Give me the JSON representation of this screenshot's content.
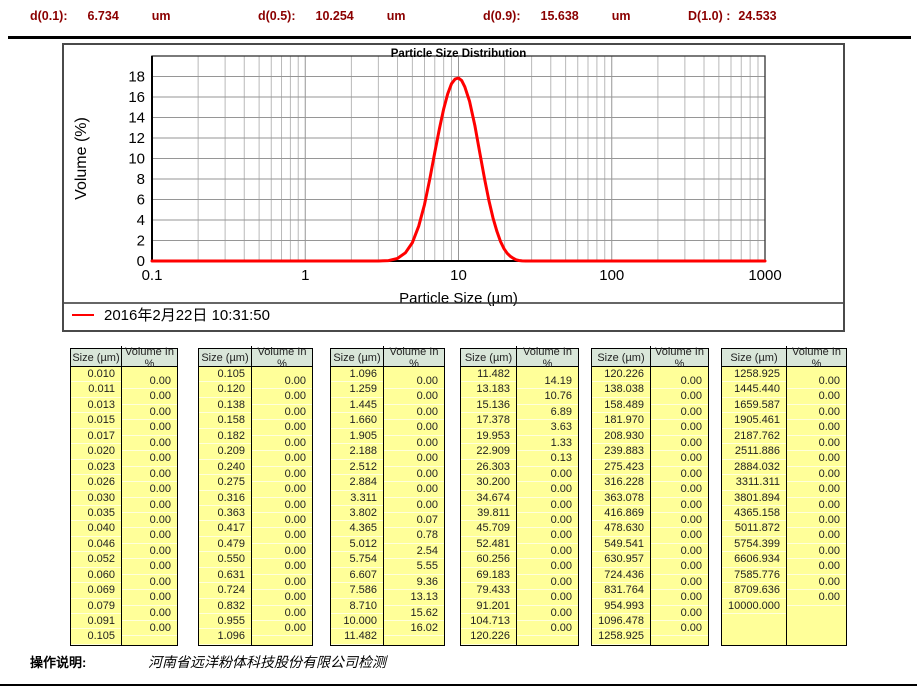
{
  "header": {
    "items": [
      {
        "label": "d(0.1):",
        "value": "6.734",
        "unit": "um"
      },
      {
        "label": "d(0.5):",
        "value": "10.254",
        "unit": "um"
      },
      {
        "label": "d(0.9):",
        "value": "15.638",
        "unit": "um"
      },
      {
        "label": "D(1.0) :",
        "value": "24.533",
        "unit": ""
      }
    ]
  },
  "chart_data": {
    "type": "line",
    "title": "Particle Size Distribution",
    "xlabel": "Particle Size (µm)",
    "ylabel": "Volume (%)",
    "xscale": "log",
    "xlim": [
      0.1,
      1000
    ],
    "ylim": [
      0,
      20
    ],
    "yticks": [
      0,
      2,
      4,
      6,
      8,
      10,
      12,
      14,
      16,
      18
    ],
    "xticks": [
      0.1,
      1,
      10,
      100,
      1000
    ],
    "xtick_labels": [
      "0.1",
      "1",
      "10",
      "100",
      "1000"
    ],
    "grid": true,
    "legend": {
      "label": "2016年2月22日  10:31:50",
      "color": "#ff0000",
      "position": "bottom"
    },
    "series": [
      {
        "name": "2016年2月22日  10:31:50",
        "color": "#ff0000",
        "points": [
          [
            0.1,
            0
          ],
          [
            1,
            0
          ],
          [
            2,
            0
          ],
          [
            3,
            0
          ],
          [
            3.5,
            0.04
          ],
          [
            4,
            0.25
          ],
          [
            4.5,
            0.8
          ],
          [
            5,
            1.8
          ],
          [
            5.5,
            3.4
          ],
          [
            6,
            5.5
          ],
          [
            6.5,
            8.0
          ],
          [
            7,
            10.6
          ],
          [
            7.5,
            12.9
          ],
          [
            8,
            14.8
          ],
          [
            8.5,
            16.3
          ],
          [
            9,
            17.3
          ],
          [
            9.5,
            17.75
          ],
          [
            10,
            17.85
          ],
          [
            10.5,
            17.6
          ],
          [
            11,
            17.0
          ],
          [
            11.8,
            15.6
          ],
          [
            12.8,
            13.2
          ],
          [
            13.8,
            10.5
          ],
          [
            14.8,
            8.0
          ],
          [
            15.8,
            5.9
          ],
          [
            16.8,
            4.2
          ],
          [
            17.8,
            2.9
          ],
          [
            18.8,
            1.9
          ],
          [
            19.8,
            1.2
          ],
          [
            20.8,
            0.75
          ],
          [
            21.8,
            0.45
          ],
          [
            22.8,
            0.25
          ],
          [
            23.8,
            0.12
          ],
          [
            24.8,
            0.05
          ],
          [
            26,
            0.01
          ],
          [
            27.5,
            0
          ],
          [
            100,
            0
          ],
          [
            1000,
            0
          ]
        ]
      }
    ]
  },
  "table_headers": [
    "Size (µm)",
    "Volume In %"
  ],
  "tables": [
    {
      "sizes": [
        "0.010",
        "0.011",
        "0.013",
        "0.015",
        "0.017",
        "0.020",
        "0.023",
        "0.026",
        "0.030",
        "0.035",
        "0.040",
        "0.046",
        "0.052",
        "0.060",
        "0.069",
        "0.079",
        "0.091",
        "0.105"
      ],
      "volumes": [
        "0.00",
        "0.00",
        "0.00",
        "0.00",
        "0.00",
        "0.00",
        "0.00",
        "0.00",
        "0.00",
        "0.00",
        "0.00",
        "0.00",
        "0.00",
        "0.00",
        "0.00",
        "0.00",
        "0.00"
      ]
    },
    {
      "sizes": [
        "0.105",
        "0.120",
        "0.138",
        "0.158",
        "0.182",
        "0.209",
        "0.240",
        "0.275",
        "0.316",
        "0.363",
        "0.417",
        "0.479",
        "0.550",
        "0.631",
        "0.724",
        "0.832",
        "0.955",
        "1.096"
      ],
      "volumes": [
        "0.00",
        "0.00",
        "0.00",
        "0.00",
        "0.00",
        "0.00",
        "0.00",
        "0.00",
        "0.00",
        "0.00",
        "0.00",
        "0.00",
        "0.00",
        "0.00",
        "0.00",
        "0.00",
        "0.00"
      ]
    },
    {
      "sizes": [
        "1.096",
        "1.259",
        "1.445",
        "1.660",
        "1.905",
        "2.188",
        "2.512",
        "2.884",
        "3.311",
        "3.802",
        "4.365",
        "5.012",
        "5.754",
        "6.607",
        "7.586",
        "8.710",
        "10.000",
        "11.482"
      ],
      "volumes": [
        "0.00",
        "0.00",
        "0.00",
        "0.00",
        "0.00",
        "0.00",
        "0.00",
        "0.00",
        "0.00",
        "0.07",
        "0.78",
        "2.54",
        "5.55",
        "9.36",
        "13.13",
        "15.62",
        "16.02"
      ]
    },
    {
      "sizes": [
        "11.482",
        "13.183",
        "15.136",
        "17.378",
        "19.953",
        "22.909",
        "26.303",
        "30.200",
        "34.674",
        "39.811",
        "45.709",
        "52.481",
        "60.256",
        "69.183",
        "79.433",
        "91.201",
        "104.713",
        "120.226"
      ],
      "volumes": [
        "14.19",
        "10.76",
        "6.89",
        "3.63",
        "1.33",
        "0.13",
        "0.00",
        "0.00",
        "0.00",
        "0.00",
        "0.00",
        "0.00",
        "0.00",
        "0.00",
        "0.00",
        "0.00",
        "0.00"
      ]
    },
    {
      "sizes": [
        "120.226",
        "138.038",
        "158.489",
        "181.970",
        "208.930",
        "239.883",
        "275.423",
        "316.228",
        "363.078",
        "416.869",
        "478.630",
        "549.541",
        "630.957",
        "724.436",
        "831.764",
        "954.993",
        "1096.478",
        "1258.925"
      ],
      "volumes": [
        "0.00",
        "0.00",
        "0.00",
        "0.00",
        "0.00",
        "0.00",
        "0.00",
        "0.00",
        "0.00",
        "0.00",
        "0.00",
        "0.00",
        "0.00",
        "0.00",
        "0.00",
        "0.00",
        "0.00"
      ]
    },
    {
      "sizes": [
        "1258.925",
        "1445.440",
        "1659.587",
        "1905.461",
        "2187.762",
        "2511.886",
        "2884.032",
        "3311.311",
        "3801.894",
        "4365.158",
        "5011.872",
        "5754.399",
        "6606.934",
        "7585.776",
        "8709.636",
        "10000.000"
      ],
      "volumes": [
        "0.00",
        "0.00",
        "0.00",
        "0.00",
        "0.00",
        "0.00",
        "0.00",
        "0.00",
        "0.00",
        "0.00",
        "0.00",
        "0.00",
        "0.00",
        "0.00",
        "0.00"
      ]
    }
  ],
  "footer": {
    "label": "操作说明:",
    "note": "河南省远洋粉体科技股份有限公司检测"
  }
}
